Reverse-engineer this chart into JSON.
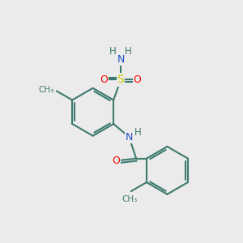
{
  "background_color": "#EBEBEB",
  "bond_color": "#3D7A6E",
  "bond_width": 1.5,
  "atom_colors": {
    "N": "#1C4FCC",
    "O": "#FF0000",
    "S": "#CCCC00",
    "C": "#3D7A6E",
    "H": "#3D7A6E"
  },
  "font_size": 9
}
